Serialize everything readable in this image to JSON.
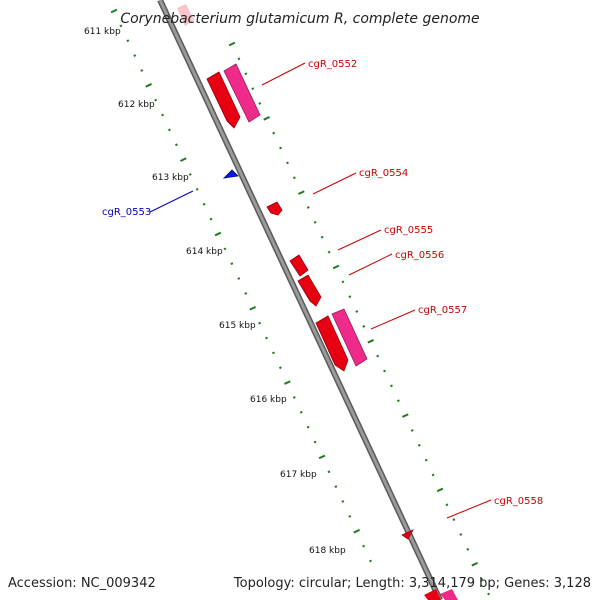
{
  "title": "Corynebacterium glutamicum R, complete genome",
  "footer": {
    "accession": "Accession: NC_009342",
    "topology": "Topology: circular; Length: 3,314,179 bp; Genes: 3,128"
  },
  "colors": {
    "backbone": "#808080",
    "tick": "#1f7a1f",
    "forward_label": "#cc0000",
    "reverse_label": "#0000bb",
    "cds_red": "#e60012",
    "cds_pink": "#ee2a8a",
    "cds_blue": "#0a18e0",
    "faint_pink": "#f6c4cc"
  },
  "scale_labels": [
    "611 kbp",
    "612 kbp",
    "613 kbp",
    "614 kbp",
    "615 kbp",
    "616 kbp",
    "617 kbp",
    "618 kbp"
  ],
  "genes": [
    {
      "name": "cgR_0552",
      "strand": "forward"
    },
    {
      "name": "cgR_0553",
      "strand": "reverse"
    },
    {
      "name": "cgR_0554",
      "strand": "forward"
    },
    {
      "name": "cgR_0555",
      "strand": "forward"
    },
    {
      "name": "cgR_0556",
      "strand": "forward"
    },
    {
      "name": "cgR_0557",
      "strand": "forward"
    },
    {
      "name": "cgR_0558",
      "strand": "forward"
    }
  ]
}
